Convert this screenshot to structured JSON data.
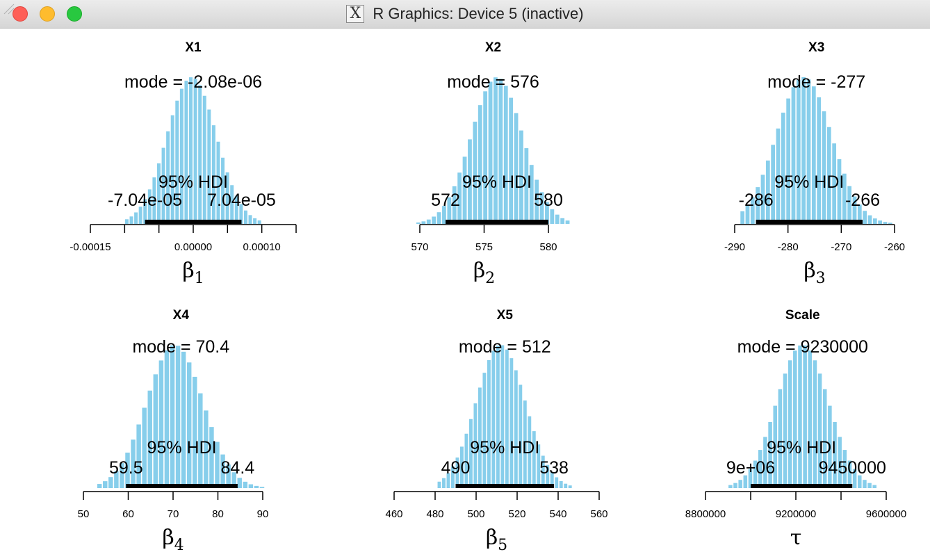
{
  "window": {
    "title": "R Graphics: Device 5 (inactive)",
    "icon": "x11-icon"
  },
  "colors": {
    "bar": "#87ceeb",
    "hdi": "#000000",
    "text": "#000000"
  },
  "chart_data": [
    {
      "type": "bar",
      "title": "X1",
      "xlabel_base": "β",
      "xlabel_sub": "1",
      "mode_label": "mode = -2.08e-06",
      "hdi_label": "95% HDI",
      "hdi_low": -7.04e-05,
      "hdi_high": 7.04e-05,
      "hdi_low_label": "-7.04e-05",
      "hdi_high_label": "7.04e-05",
      "xlim": [
        -0.00015,
        0.00015
      ],
      "ticks": [
        -0.00015,
        -0.0001,
        -5e-05,
        0,
        5e-05,
        0.0001,
        0.00015
      ],
      "tick_labels": [
        "-0.00015",
        "",
        "",
        "0.00000",
        "",
        "0.00010",
        ""
      ],
      "hist_range": [
        -0.0001,
        0.0001
      ],
      "mode": -2.08e-06,
      "sd": 3.6e-05
    },
    {
      "type": "bar",
      "title": "X2",
      "xlabel_base": "β",
      "xlabel_sub": "2",
      "mode_label": "mode = 576",
      "hdi_label": "95% HDI",
      "hdi_low": 572,
      "hdi_high": 580,
      "hdi_low_label": "572",
      "hdi_high_label": "580",
      "xlim": [
        570,
        580
      ],
      "ticks": [
        570,
        575,
        580
      ],
      "tick_labels": [
        "570",
        "575",
        "580"
      ],
      "hist_range": [
        569.7,
        581.7
      ],
      "mode": 576,
      "sd": 2.0
    },
    {
      "type": "bar",
      "title": "X3",
      "xlabel_base": "β",
      "xlabel_sub": "3",
      "mode_label": "mode = -277",
      "hdi_label": "95% HDI",
      "hdi_low": -286,
      "hdi_high": -266,
      "hdi_low_label": "-286",
      "hdi_high_label": "-266",
      "xlim": [
        -290,
        -260
      ],
      "ticks": [
        -290,
        -280,
        -270,
        -260
      ],
      "tick_labels": [
        "-290",
        "-280",
        "-270",
        "-260"
      ],
      "hist_range": [
        -289,
        -260.3
      ],
      "mode": -277,
      "sd": 5.2
    },
    {
      "type": "bar",
      "title": "X4",
      "xlabel_base": "β",
      "xlabel_sub": "4",
      "mode_label": "mode = 70.4",
      "hdi_label": "95% HDI",
      "hdi_low": 59.5,
      "hdi_high": 84.4,
      "hdi_low_label": "59.5",
      "hdi_high_label": "84.4",
      "xlim": [
        50,
        90
      ],
      "ticks": [
        50,
        60,
        70,
        80,
        90
      ],
      "tick_labels": [
        "50",
        "60",
        "70",
        "80",
        "90"
      ],
      "hist_range": [
        53,
        90.5
      ],
      "mode": 70.4,
      "sd": 6.3
    },
    {
      "type": "bar",
      "title": "X5",
      "xlabel_base": "β",
      "xlabel_sub": "5",
      "mode_label": "mode = 512",
      "hdi_label": "95% HDI",
      "hdi_low": 490,
      "hdi_high": 538,
      "hdi_low_label": "490",
      "hdi_high_label": "538",
      "xlim": [
        460,
        560
      ],
      "ticks": [
        460,
        480,
        500,
        520,
        540,
        560
      ],
      "tick_labels": [
        "460",
        "480",
        "500",
        "520",
        "540",
        "560"
      ],
      "hist_range": [
        481,
        547
      ],
      "mode": 512,
      "sd": 12.0
    },
    {
      "type": "bar",
      "title": "Scale",
      "xlabel_base": "τ",
      "xlabel_sub": "",
      "mode_label": "mode = 9230000",
      "hdi_label": "95% HDI",
      "hdi_low": 9000000,
      "hdi_high": 9450000,
      "hdi_low_label": "9e+06",
      "hdi_high_label": "9450000",
      "xlim": [
        8800000,
        9600000
      ],
      "ticks": [
        8800000,
        9000000,
        9200000,
        9400000,
        9600000
      ],
      "tick_labels": [
        "8800000",
        "",
        "9200000",
        "",
        "9600000"
      ],
      "hist_range": [
        8900000,
        9560000
      ],
      "mode": 9230000,
      "sd": 115000
    }
  ]
}
